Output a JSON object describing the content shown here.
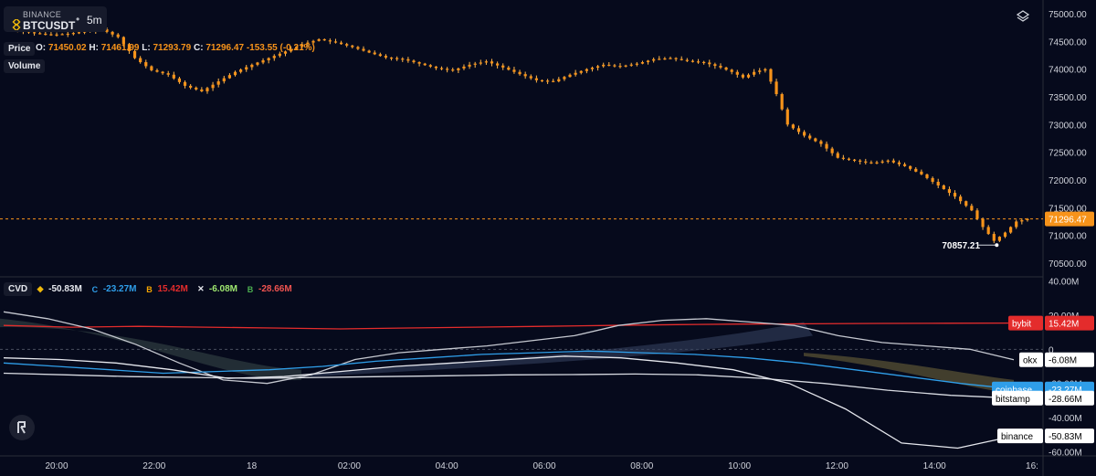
{
  "header": {
    "exchange": "BINANCE",
    "symbol": "BTCUSDT",
    "timeframe": "5m",
    "price_tag": "Price",
    "volume_tag": "Volume",
    "ohlc": {
      "o_label": "O:",
      "o_value": "71450.02",
      "h_label": "H:",
      "h_value": "71461.99",
      "l_label": "L:",
      "l_value": "71293.79",
      "c_label": "C:",
      "c_value": "71296.47",
      "change": "-153.55",
      "change_pct": "(-0.21%)"
    }
  },
  "colors": {
    "background": "#060a1c",
    "candle": "#f7931a",
    "candle_wick": "#ffb84d",
    "binance": "#e6e8ee",
    "coinbase": "#2f9ee9",
    "bitstamp": "#d8dbe2",
    "okx": "#c5c8d0",
    "bybit": "#e42c2c",
    "last_price_line": "#f7931a"
  },
  "cvd_header": {
    "title": "CVD",
    "items": [
      {
        "icon": "binance-icon",
        "glyph": "◆",
        "value": "-50.83M",
        "color": "#e6e8ee",
        "icon_color": "#f0b90b"
      },
      {
        "icon": "coinbase-icon",
        "glyph": "C",
        "value": "-23.27M",
        "color": "#2f9ee9",
        "icon_color": "#2f9ee9"
      },
      {
        "icon": "bybit-icon",
        "glyph": "B",
        "value": "15.42M",
        "color": "#e42c2c",
        "icon_color": "#f7a600"
      },
      {
        "icon": "okx-icon",
        "glyph": "✕",
        "value": "-6.08M",
        "color": "#9fe870",
        "icon_color": "#e6e8ee"
      },
      {
        "icon": "bitstamp-icon",
        "glyph": "B",
        "value": "-28.66M",
        "color": "#ef5350",
        "icon_color": "#4caf50"
      }
    ]
  },
  "chart_data": [
    {
      "type": "candlestick",
      "title": "BINANCE BTCUSDT 5m",
      "y_axis_ticks": [
        75000,
        74500,
        74000,
        73500,
        73000,
        72500,
        72000,
        71500,
        71000,
        70500
      ],
      "ylim": [
        70300,
        75150
      ],
      "last_price": 71296.47,
      "last_price_label": "71296.47",
      "low_marker": 70857.21,
      "low_marker_label": "70857.21",
      "x_axis_ticks": [
        "20:00",
        "22:00",
        "18",
        "02:00",
        "04:00",
        "06:00",
        "08:00",
        "10:00",
        "12:00",
        "14:00",
        "16:"
      ],
      "close_path_approx": [
        [
          0,
          74850
        ],
        [
          3,
          74700
        ],
        [
          6,
          74650
        ],
        [
          9,
          74620
        ],
        [
          12,
          74640
        ],
        [
          15,
          74680
        ],
        [
          18,
          74720
        ],
        [
          21,
          74580
        ],
        [
          24,
          74200
        ],
        [
          27,
          73980
        ],
        [
          30,
          73900
        ],
        [
          33,
          73700
        ],
        [
          36,
          73600
        ],
        [
          39,
          73780
        ],
        [
          42,
          73950
        ],
        [
          45,
          74080
        ],
        [
          48,
          74200
        ],
        [
          51,
          74320
        ],
        [
          54,
          74450
        ],
        [
          57,
          74540
        ],
        [
          60,
          74480
        ],
        [
          63,
          74400
        ],
        [
          66,
          74300
        ],
        [
          69,
          74210
        ],
        [
          72,
          74180
        ],
        [
          75,
          74100
        ],
        [
          78,
          74020
        ],
        [
          81,
          73980
        ],
        [
          84,
          74080
        ],
        [
          87,
          74140
        ],
        [
          90,
          74030
        ],
        [
          93,
          73910
        ],
        [
          96,
          73800
        ],
        [
          99,
          73780
        ],
        [
          102,
          73900
        ],
        [
          105,
          74000
        ],
        [
          108,
          74080
        ],
        [
          111,
          74050
        ],
        [
          114,
          74100
        ],
        [
          117,
          74180
        ],
        [
          120,
          74200
        ],
        [
          123,
          74150
        ],
        [
          126,
          74120
        ],
        [
          129,
          74030
        ],
        [
          131,
          73950
        ],
        [
          133,
          73850
        ],
        [
          135,
          73950
        ],
        [
          137,
          74000
        ],
        [
          139,
          73550
        ],
        [
          141,
          73000
        ],
        [
          144,
          72800
        ],
        [
          147,
          72650
        ],
        [
          150,
          72400
        ],
        [
          153,
          72350
        ],
        [
          156,
          72300
        ],
        [
          159,
          72350
        ],
        [
          162,
          72250
        ],
        [
          165,
          72100
        ],
        [
          168,
          71900
        ],
        [
          171,
          71700
        ],
        [
          174,
          71450
        ],
        [
          176,
          71150
        ],
        [
          178,
          70900
        ],
        [
          180,
          71050
        ],
        [
          182,
          71250
        ],
        [
          184,
          71296
        ]
      ]
    },
    {
      "type": "line",
      "title": "CVD",
      "y_axis_ticks": [
        "40.00M",
        "20.00M",
        "0",
        "-20.00M",
        "-40.00M",
        "-60.00M"
      ],
      "ylim": [
        -62,
        42
      ],
      "series": [
        {
          "name": "bybit",
          "label": "15.42M",
          "color": "#e42c2c",
          "values": [
            14,
            13,
            13.5,
            13,
            12.5,
            12,
            12.5,
            13,
            13.5,
            14,
            14.5,
            14.8,
            15,
            15.2,
            15.3,
            15.4
          ]
        },
        {
          "name": "okx",
          "label": "-6.08M",
          "color": "#c5c8d0",
          "values": [
            22,
            18,
            12,
            3,
            -8,
            -18,
            -20,
            -15,
            -6,
            -2,
            0,
            2,
            5,
            8,
            14,
            17,
            18,
            16,
            14,
            8,
            4,
            2,
            0,
            -6.08
          ]
        },
        {
          "name": "coinbase",
          "label": "-23.27M",
          "color": "#2f9ee9",
          "values": [
            -8,
            -10,
            -12,
            -14,
            -13,
            -12,
            -10,
            -7,
            -5,
            -3,
            -2,
            -1,
            -2,
            -3,
            -5,
            -8,
            -12,
            -16,
            -20,
            -23.27
          ]
        },
        {
          "name": "bitstamp",
          "label": "-28.66M",
          "color": "#d8dbe2",
          "values": [
            -14,
            -15,
            -16,
            -16.5,
            -17,
            -16.5,
            -16,
            -15.5,
            -15,
            -14.8,
            -14.5,
            -15,
            -17,
            -20,
            -24,
            -27,
            -28.66
          ]
        },
        {
          "name": "binance",
          "label": "-50.83M",
          "color": "#e6e8ee",
          "values": [
            -5,
            -6,
            -8,
            -12,
            -17,
            -16,
            -13,
            -10,
            -8,
            -6,
            -4,
            -5,
            -8,
            -12,
            -20,
            -35,
            -55,
            -58,
            -50.83
          ]
        }
      ]
    }
  ]
}
